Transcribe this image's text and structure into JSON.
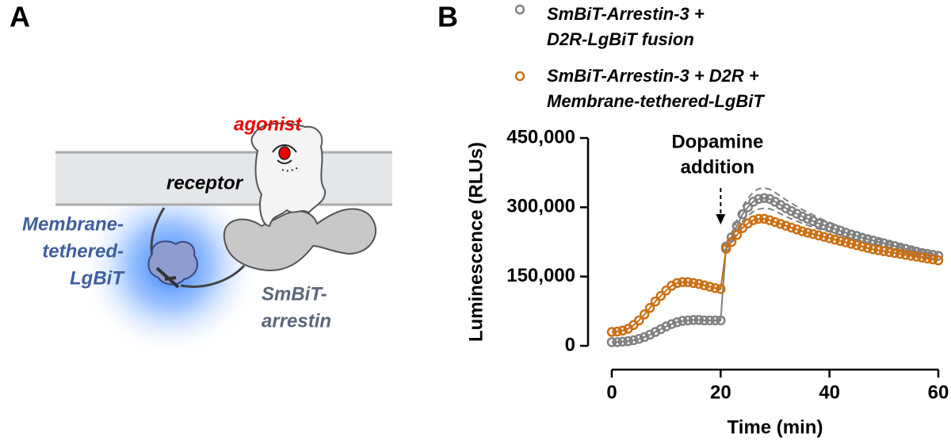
{
  "panel_labels": [
    "A",
    "B"
  ],
  "panel_a": {
    "agonist": "agonist",
    "receptor": "receptor",
    "lgbit_label": [
      "Membrane-",
      "tethered-",
      "LgBiT"
    ],
    "arrestin_label": [
      "SmBiT-",
      "arrestin"
    ]
  },
  "chart_data": {
    "type": "scatter",
    "xlabel": "Time (min)",
    "ylabel": "Luminescence (RLUs)",
    "annotation": {
      "lines": [
        "Dopamine",
        "addition"
      ],
      "x": 20
    },
    "xlim": [
      0,
      60
    ],
    "xticks": [
      0,
      20,
      40,
      60
    ],
    "ylim": [
      0,
      450000
    ],
    "yticks": [
      0,
      {
        "value": 150000,
        "label": "150,000"
      },
      {
        "value": 300000,
        "label": "300,000"
      },
      {
        "value": 450000,
        "label": "450,000"
      }
    ],
    "x": [
      0,
      1,
      2,
      3,
      4,
      5,
      6,
      7,
      8,
      9,
      10,
      11,
      12,
      13,
      14,
      15,
      16,
      17,
      18,
      19,
      20,
      21,
      22,
      23,
      24,
      25,
      26,
      27,
      28,
      29,
      30,
      31,
      32,
      33,
      34,
      35,
      36,
      37,
      38,
      39,
      40,
      41,
      42,
      43,
      44,
      45,
      46,
      47,
      48,
      49,
      50,
      51,
      52,
      53,
      54,
      55,
      56,
      57,
      58,
      59,
      60
    ],
    "series": [
      {
        "name": "SmBiT-Arrestin-3 +\nD2R-LgBiT fusion",
        "color": "#808080",
        "values": [
          8000,
          8000,
          9000,
          10000,
          12000,
          15000,
          19000,
          24000,
          30000,
          36000,
          42000,
          47000,
          51000,
          54000,
          55000,
          56000,
          56000,
          55000,
          55000,
          55000,
          55000,
          215000,
          235000,
          260000,
          285000,
          300000,
          312000,
          318000,
          320000,
          318000,
          312000,
          305000,
          298000,
          292000,
          286000,
          280000,
          275000,
          270000,
          265000,
          261000,
          257000,
          253000,
          249000,
          245000,
          241000,
          238000,
          234000,
          231000,
          228000,
          225000,
          222000,
          219000,
          216000,
          213000,
          210000,
          207000,
          204000,
          201000,
          199000,
          197000,
          195000
        ],
        "errors": [
          null,
          null,
          null,
          null,
          null,
          null,
          null,
          null,
          null,
          null,
          null,
          null,
          null,
          null,
          null,
          null,
          null,
          null,
          null,
          null,
          null,
          5000,
          8000,
          12000,
          16000,
          19000,
          21000,
          22000,
          22000,
          21000,
          20000,
          19000,
          18000,
          17000,
          16000,
          15000,
          14000,
          13000,
          12000,
          11000,
          10000,
          10000,
          9000,
          9000,
          8000,
          8000,
          7000,
          7000,
          7000,
          6000,
          6000,
          6000,
          5000,
          5000,
          5000,
          5000,
          5000,
          5000,
          4000,
          4000,
          4000
        ]
      },
      {
        "name": "SmBiT-Arrestin-3 + D2R +\nMembrane-tethered-LgBiT",
        "color": "#cc6f12",
        "values": [
          30000,
          31000,
          33000,
          37000,
          45000,
          55000,
          68000,
          82000,
          96000,
          108000,
          120000,
          130000,
          136000,
          138000,
          138000,
          136000,
          134000,
          131000,
          128000,
          125000,
          123000,
          210000,
          225000,
          240000,
          255000,
          265000,
          272000,
          275000,
          275000,
          272000,
          268000,
          264000,
          260000,
          256000,
          252000,
          248000,
          245000,
          242000,
          239000,
          236000,
          233000,
          230000,
          227000,
          224000,
          221000,
          218000,
          215000,
          212000,
          209000,
          207000,
          205000,
          203000,
          201000,
          199000,
          197000,
          195000,
          193000,
          191000,
          189000,
          187000,
          185000
        ]
      }
    ]
  }
}
